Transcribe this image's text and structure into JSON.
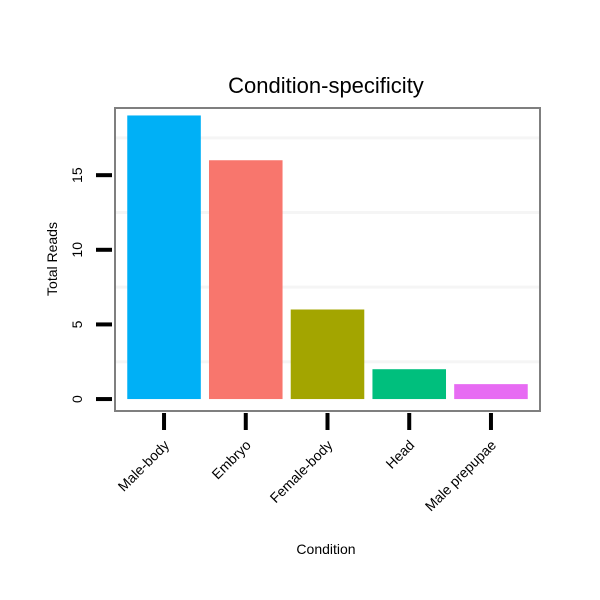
{
  "chart_data": {
    "type": "bar",
    "title": "Condition-specificity",
    "xlabel": "Condition",
    "ylabel": "Total Reads",
    "categories": [
      "Male-body",
      "Embryo",
      "Female-body",
      "Head",
      "Male prepupae"
    ],
    "values": [
      19,
      16,
      6,
      2,
      1
    ],
    "colors": [
      "#00b0f6",
      "#f8766d",
      "#a3a500",
      "#00bf7d",
      "#e76bf3"
    ],
    "yticks": [
      0,
      5,
      10,
      15
    ],
    "ylim": [
      -0.8,
      19.5
    ],
    "grid": true,
    "legend": "none"
  }
}
